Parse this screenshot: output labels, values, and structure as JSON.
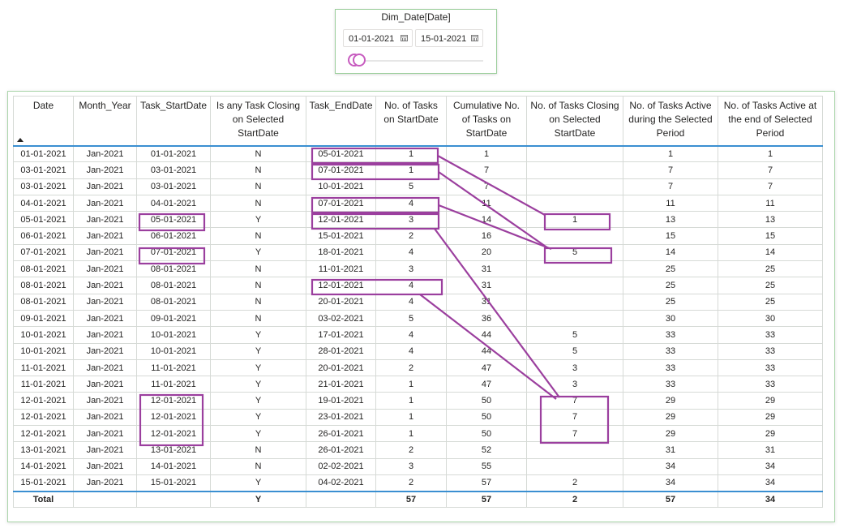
{
  "slicer": {
    "title": "Dim_Date[Date]",
    "start_date": "01-01-2021",
    "end_date": "15-01-2021",
    "calendar_icon": "calendar-icon",
    "handle_color": "#c75bbf"
  },
  "table": {
    "columns": [
      "Date",
      "Month_Year",
      "Task_StartDate",
      "Is any Task Closing on Selected StartDate",
      "Task_EndDate",
      "No. of Tasks on StartDate",
      "Cumulative No. of Tasks on StartDate",
      "No. of Tasks Closing on Selected StartDate",
      "No. of Tasks Active during the Selected Period",
      "No. of Tasks Active at the end of Selected Period"
    ],
    "rows": [
      [
        "01-01-2021",
        "Jan-2021",
        "01-01-2021",
        "N",
        "05-01-2021",
        "1",
        "1",
        "",
        "1",
        "1"
      ],
      [
        "03-01-2021",
        "Jan-2021",
        "03-01-2021",
        "N",
        "07-01-2021",
        "1",
        "7",
        "",
        "7",
        "7"
      ],
      [
        "03-01-2021",
        "Jan-2021",
        "03-01-2021",
        "N",
        "10-01-2021",
        "5",
        "7",
        "",
        "7",
        "7"
      ],
      [
        "04-01-2021",
        "Jan-2021",
        "04-01-2021",
        "N",
        "07-01-2021",
        "4",
        "11",
        "",
        "11",
        "11"
      ],
      [
        "05-01-2021",
        "Jan-2021",
        "05-01-2021",
        "Y",
        "12-01-2021",
        "3",
        "14",
        "1",
        "13",
        "13"
      ],
      [
        "06-01-2021",
        "Jan-2021",
        "06-01-2021",
        "N",
        "15-01-2021",
        "2",
        "16",
        "",
        "15",
        "15"
      ],
      [
        "07-01-2021",
        "Jan-2021",
        "07-01-2021",
        "Y",
        "18-01-2021",
        "4",
        "20",
        "5",
        "14",
        "14"
      ],
      [
        "08-01-2021",
        "Jan-2021",
        "08-01-2021",
        "N",
        "11-01-2021",
        "3",
        "31",
        "",
        "25",
        "25"
      ],
      [
        "08-01-2021",
        "Jan-2021",
        "08-01-2021",
        "N",
        "12-01-2021",
        "4",
        "31",
        "",
        "25",
        "25"
      ],
      [
        "08-01-2021",
        "Jan-2021",
        "08-01-2021",
        "N",
        "20-01-2021",
        "4",
        "31",
        "",
        "25",
        "25"
      ],
      [
        "09-01-2021",
        "Jan-2021",
        "09-01-2021",
        "N",
        "03-02-2021",
        "5",
        "36",
        "",
        "30",
        "30"
      ],
      [
        "10-01-2021",
        "Jan-2021",
        "10-01-2021",
        "Y",
        "17-01-2021",
        "4",
        "44",
        "5",
        "33",
        "33"
      ],
      [
        "10-01-2021",
        "Jan-2021",
        "10-01-2021",
        "Y",
        "28-01-2021",
        "4",
        "44",
        "5",
        "33",
        "33"
      ],
      [
        "11-01-2021",
        "Jan-2021",
        "11-01-2021",
        "Y",
        "20-01-2021",
        "2",
        "47",
        "3",
        "33",
        "33"
      ],
      [
        "11-01-2021",
        "Jan-2021",
        "11-01-2021",
        "Y",
        "21-01-2021",
        "1",
        "47",
        "3",
        "33",
        "33"
      ],
      [
        "12-01-2021",
        "Jan-2021",
        "12-01-2021",
        "Y",
        "19-01-2021",
        "1",
        "50",
        "7",
        "29",
        "29"
      ],
      [
        "12-01-2021",
        "Jan-2021",
        "12-01-2021",
        "Y",
        "23-01-2021",
        "1",
        "50",
        "7",
        "29",
        "29"
      ],
      [
        "12-01-2021",
        "Jan-2021",
        "12-01-2021",
        "Y",
        "26-01-2021",
        "1",
        "50",
        "7",
        "29",
        "29"
      ],
      [
        "13-01-2021",
        "Jan-2021",
        "13-01-2021",
        "N",
        "26-01-2021",
        "2",
        "52",
        "",
        "31",
        "31"
      ],
      [
        "14-01-2021",
        "Jan-2021",
        "14-01-2021",
        "N",
        "02-02-2021",
        "3",
        "55",
        "",
        "34",
        "34"
      ],
      [
        "15-01-2021",
        "Jan-2021",
        "15-01-2021",
        "Y",
        "04-02-2021",
        "2",
        "57",
        "2",
        "34",
        "34"
      ]
    ],
    "total": [
      "Total",
      "",
      "",
      "Y",
      "",
      "57",
      "57",
      "2",
      "57",
      "34"
    ],
    "sort_icon": "sort-ascending-icon",
    "header_rule_color": "#3a8fd1",
    "annotation_color": "#9b3f9e"
  }
}
